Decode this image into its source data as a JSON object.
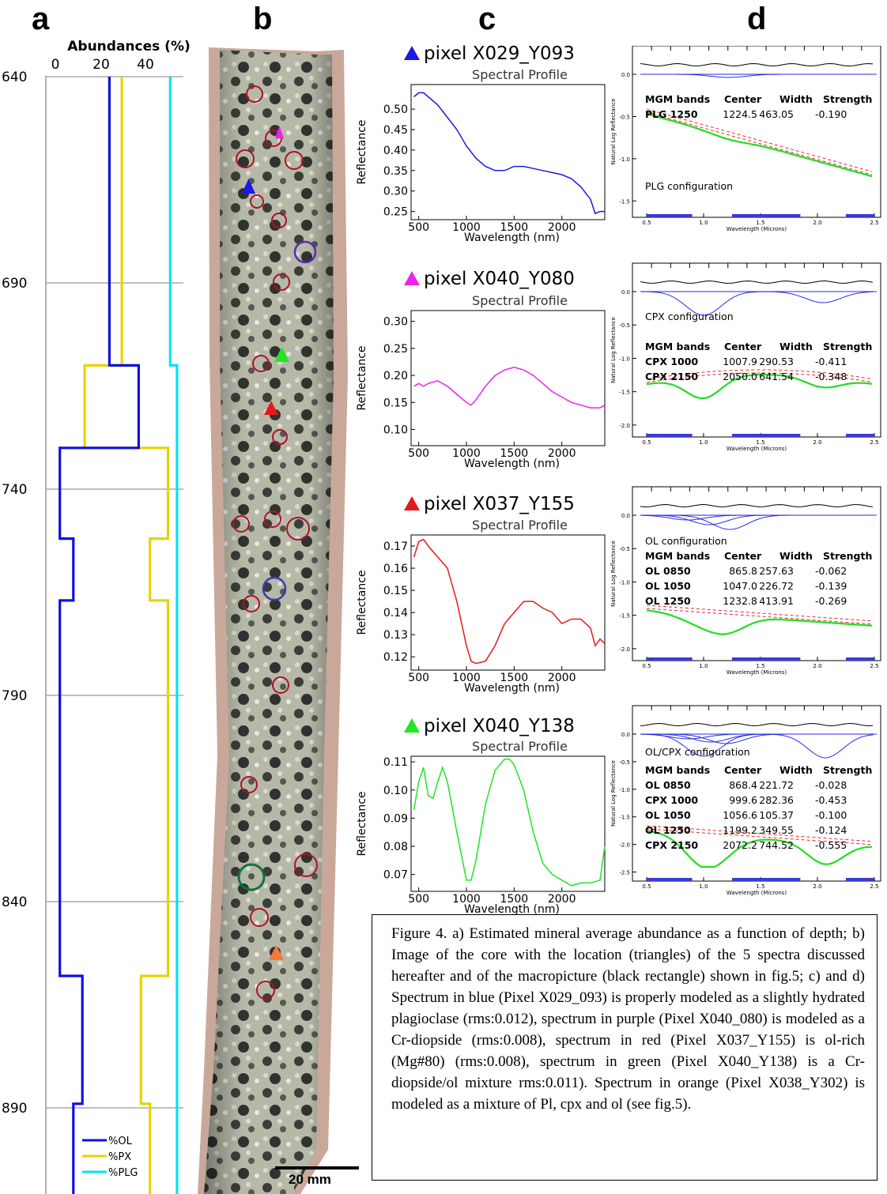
{
  "panel_labels": [
    "a",
    "b",
    "c",
    "d"
  ],
  "panel_a": {
    "title": "Abundances (%)",
    "x_ticks": [
      "0",
      "20",
      "40"
    ],
    "depth_ticks": [
      "640",
      "690",
      "740",
      "790",
      "840",
      "890"
    ],
    "legend": [
      {
        "label": "%OL",
        "color": "#1010e0"
      },
      {
        "label": "%PX",
        "color": "#e6d400"
      },
      {
        "label": "%PLG",
        "color": "#00e6ee"
      }
    ]
  },
  "chart_data": {
    "type": "line",
    "title": "Abundances (%)",
    "xlabel": "",
    "ylabel": "",
    "xlim": [
      0,
      55
    ],
    "ylim": [
      640,
      920
    ],
    "y_reversed": true,
    "series": [
      {
        "name": "%OL",
        "color": "#1010e0",
        "points": [
          [
            24,
            640
          ],
          [
            24,
            710
          ],
          [
            37,
            710
          ],
          [
            37,
            730
          ],
          [
            5,
            730
          ],
          [
            5,
            750
          ],
          [
            12,
            750
          ],
          [
            12,
            767
          ],
          [
            5,
            767
          ],
          [
            5,
            757
          ],
          [
            5,
            757
          ]
        ]
      },
      {
        "name": "%PX",
        "color": "#e6d400",
        "points": [
          [
            30,
            640
          ],
          [
            30,
            710
          ],
          [
            20,
            710
          ],
          [
            20,
            730
          ],
          [
            46,
            730
          ],
          [
            46,
            750
          ],
          [
            40,
            750
          ],
          [
            40,
            767
          ],
          [
            46,
            767
          ]
        ]
      },
      {
        "name": "%PLG",
        "color": "#00e6ee",
        "points": [
          [
            50,
            640
          ],
          [
            50,
            710
          ],
          [
            53,
            710
          ],
          [
            53,
            920
          ]
        ]
      }
    ]
  },
  "panel_b": {
    "scale_bar": "20 mm"
  },
  "spectra": [
    {
      "title": "pixel X029_Y093",
      "color": "#1a1ae6",
      "marker": "#1a1ae6",
      "profile_title": "Spectral Profile",
      "ylabel": "Reflectance",
      "xlabel": "Wavelength (nm)",
      "yticks": [
        "0.50",
        "0.45",
        "0.40",
        "0.35",
        "0.30",
        "0.25"
      ],
      "xticks": [
        "500",
        "1000",
        "1500",
        "2000"
      ],
      "x": [
        450,
        500,
        550,
        600,
        700,
        800,
        900,
        1000,
        1100,
        1200,
        1300,
        1400,
        1500,
        1600,
        1700,
        1800,
        1900,
        2000,
        2100,
        2200,
        2300,
        2350,
        2400,
        2450
      ],
      "y": [
        0.53,
        0.54,
        0.54,
        0.53,
        0.51,
        0.48,
        0.45,
        0.41,
        0.38,
        0.36,
        0.35,
        0.35,
        0.36,
        0.36,
        0.355,
        0.35,
        0.345,
        0.34,
        0.33,
        0.31,
        0.28,
        0.245,
        0.25,
        0.25
      ],
      "ylim": [
        0.23,
        0.56
      ]
    },
    {
      "title": "pixel X040_Y080",
      "color": "#ee22ee",
      "marker": "#ee22ee",
      "profile_title": "Spectral Profile",
      "ylabel": "Reflectance",
      "xlabel": "Wavelength (nm)",
      "yticks": [
        "0.30",
        "0.25",
        "0.20",
        "0.15",
        "0.10"
      ],
      "xticks": [
        "500",
        "1000",
        "1500",
        "2000"
      ],
      "x": [
        450,
        500,
        550,
        600,
        700,
        800,
        900,
        1000,
        1050,
        1100,
        1200,
        1300,
        1400,
        1500,
        1600,
        1700,
        1800,
        1900,
        2000,
        2100,
        2200,
        2300,
        2400,
        2450
      ],
      "y": [
        0.18,
        0.185,
        0.18,
        0.185,
        0.19,
        0.18,
        0.165,
        0.15,
        0.145,
        0.155,
        0.18,
        0.2,
        0.21,
        0.215,
        0.21,
        0.2,
        0.185,
        0.17,
        0.16,
        0.15,
        0.145,
        0.14,
        0.14,
        0.145
      ],
      "ylim": [
        0.07,
        0.32
      ]
    },
    {
      "title": "pixel X037_Y155",
      "color": "#e61a1a",
      "marker": "#e61a1a",
      "profile_title": "Spectral Profile",
      "ylabel": "Reflectance",
      "xlabel": "Wavelength (nm)",
      "yticks": [
        "0.17",
        "0.16",
        "0.15",
        "0.14",
        "0.13",
        "0.12"
      ],
      "xticks": [
        "500",
        "1000",
        "1500",
        "2000"
      ],
      "x": [
        450,
        500,
        550,
        600,
        700,
        800,
        900,
        1000,
        1050,
        1100,
        1200,
        1300,
        1400,
        1500,
        1600,
        1700,
        1800,
        1900,
        2000,
        2100,
        2200,
        2300,
        2350,
        2400,
        2450
      ],
      "y": [
        0.165,
        0.172,
        0.173,
        0.17,
        0.165,
        0.16,
        0.145,
        0.125,
        0.118,
        0.117,
        0.118,
        0.125,
        0.135,
        0.14,
        0.145,
        0.145,
        0.142,
        0.14,
        0.135,
        0.137,
        0.137,
        0.133,
        0.125,
        0.128,
        0.126
      ],
      "ylim": [
        0.114,
        0.175
      ]
    },
    {
      "title": "pixel X040_Y138",
      "color": "#22e622",
      "marker": "#22e622",
      "profile_title": "Spectral Profile",
      "ylabel": "Reflectance",
      "xlabel": "Wavelength (nm)",
      "yticks": [
        "0.11",
        "0.10",
        "0.09",
        "0.08",
        "0.07"
      ],
      "xticks": [
        "500",
        "1000",
        "1500",
        "2000"
      ],
      "x": [
        450,
        500,
        550,
        600,
        650,
        700,
        750,
        800,
        900,
        1000,
        1050,
        1100,
        1200,
        1300,
        1400,
        1450,
        1500,
        1600,
        1700,
        1800,
        1900,
        2000,
        2100,
        2200,
        2300,
        2400,
        2450
      ],
      "y": [
        0.093,
        0.103,
        0.108,
        0.098,
        0.097,
        0.103,
        0.108,
        0.103,
        0.085,
        0.068,
        0.068,
        0.075,
        0.095,
        0.107,
        0.111,
        0.111,
        0.109,
        0.1,
        0.085,
        0.074,
        0.07,
        0.068,
        0.066,
        0.067,
        0.067,
        0.068,
        0.08
      ],
      "ylim": [
        0.064,
        0.112
      ]
    }
  ],
  "mgm": [
    {
      "config": "PLG configuration",
      "header": [
        "MGM bands",
        "Center",
        "Width",
        "Strength"
      ],
      "rows": [
        [
          "PLG 1250",
          "1224.5",
          "463.05",
          "-0.190"
        ]
      ],
      "yticks": [
        "0.0",
        "-0.5",
        "-1.0",
        "-1.5"
      ],
      "xticks": [
        "0.5",
        "1.0",
        "1.5",
        "2.0",
        "2.5"
      ],
      "ylabel": "Natural Log Reflectance",
      "xlabel": "Wavelength (Microns)"
    },
    {
      "config": "CPX configuration",
      "header": [
        "MGM bands",
        "Center",
        "Width",
        "Strength"
      ],
      "rows": [
        [
          "CPX 1000",
          "1007.9",
          "290.53",
          "-0.411"
        ],
        [
          "CPX 2150",
          "2050.0",
          "641.54",
          "-0.348"
        ]
      ],
      "yticks": [
        "0.0",
        "-0.5",
        "-1.0",
        "-1.5",
        "-2.0"
      ],
      "xticks": [
        "0.5",
        "1.0",
        "1.5",
        "2.0",
        "2.5"
      ],
      "ylabel": "Natural Log Reflectance",
      "xlabel": "Wavelength (Microns)"
    },
    {
      "config": "OL configuration",
      "header": [
        "MGM bands",
        "Center",
        "Width",
        "Strength"
      ],
      "rows": [
        [
          "OL  0850",
          "865.8",
          "257.63",
          "-0.062"
        ],
        [
          "OL  1050",
          "1047.0",
          "226.72",
          "-0.139"
        ],
        [
          "OL  1250",
          "1232.8",
          "413.91",
          "-0.269"
        ]
      ],
      "yticks": [
        "0.0",
        "-0.5",
        "-1.0",
        "-1.5",
        "-2.0"
      ],
      "xticks": [
        "0.5",
        "1.0",
        "1.5",
        "2.0",
        "2.5"
      ],
      "ylabel": "Natural Log Reflectance",
      "xlabel": "Wavelength (Microns)"
    },
    {
      "config": "OL/CPX configuration",
      "header": [
        "MGM bands",
        "Center",
        "Width",
        "Strength"
      ],
      "rows": [
        [
          "OL  0850",
          "868.4",
          "221.72",
          "-0.028"
        ],
        [
          "CPX 1000",
          "999.6",
          "282.36",
          "-0.453"
        ],
        [
          "OL  1050",
          "1056.6",
          "105.37",
          "-0.100"
        ],
        [
          "OL  1250",
          "1199.2",
          "349.55",
          "-0.124"
        ],
        [
          "CPX 2150",
          "2072.2",
          "744.52",
          "-0.555"
        ]
      ],
      "yticks": [
        "0.0",
        "-0.5",
        "-1.0",
        "-1.5",
        "-2.0",
        "-2.5"
      ],
      "xticks": [
        "0.5",
        "1.0",
        "1.5",
        "2.0",
        "2.5"
      ],
      "ylabel": "Natural Log Reflectance",
      "xlabel": "Wavelength (Microns)"
    }
  ],
  "caption": "Figure 4. a) Estimated mineral average abundance as a function of depth; b) Image of the core with the location (triangles) of the 5 spectra discussed hereafter and of the macropicture (black rectangle) shown in fig.5; c) and d) Spectrum in blue (Pixel X029_093) is properly modeled as a slightly hydrated plagioclase (rms:0.012), spectrum in purple (Pixel X040_080) is modeled as a Cr-diopside (rms:0.008), spectrum in red (Pixel X037_Y155) is ol-rich (Mg#80) (rms:0.008), spectrum in green (Pixel X040_Y138) is a Cr-diopside/ol mixture rms:0.011). Spectrum in orange (Pixel X038_Y302) is modeled as a mixture of Pl, cpx and ol (see fig.5)."
}
